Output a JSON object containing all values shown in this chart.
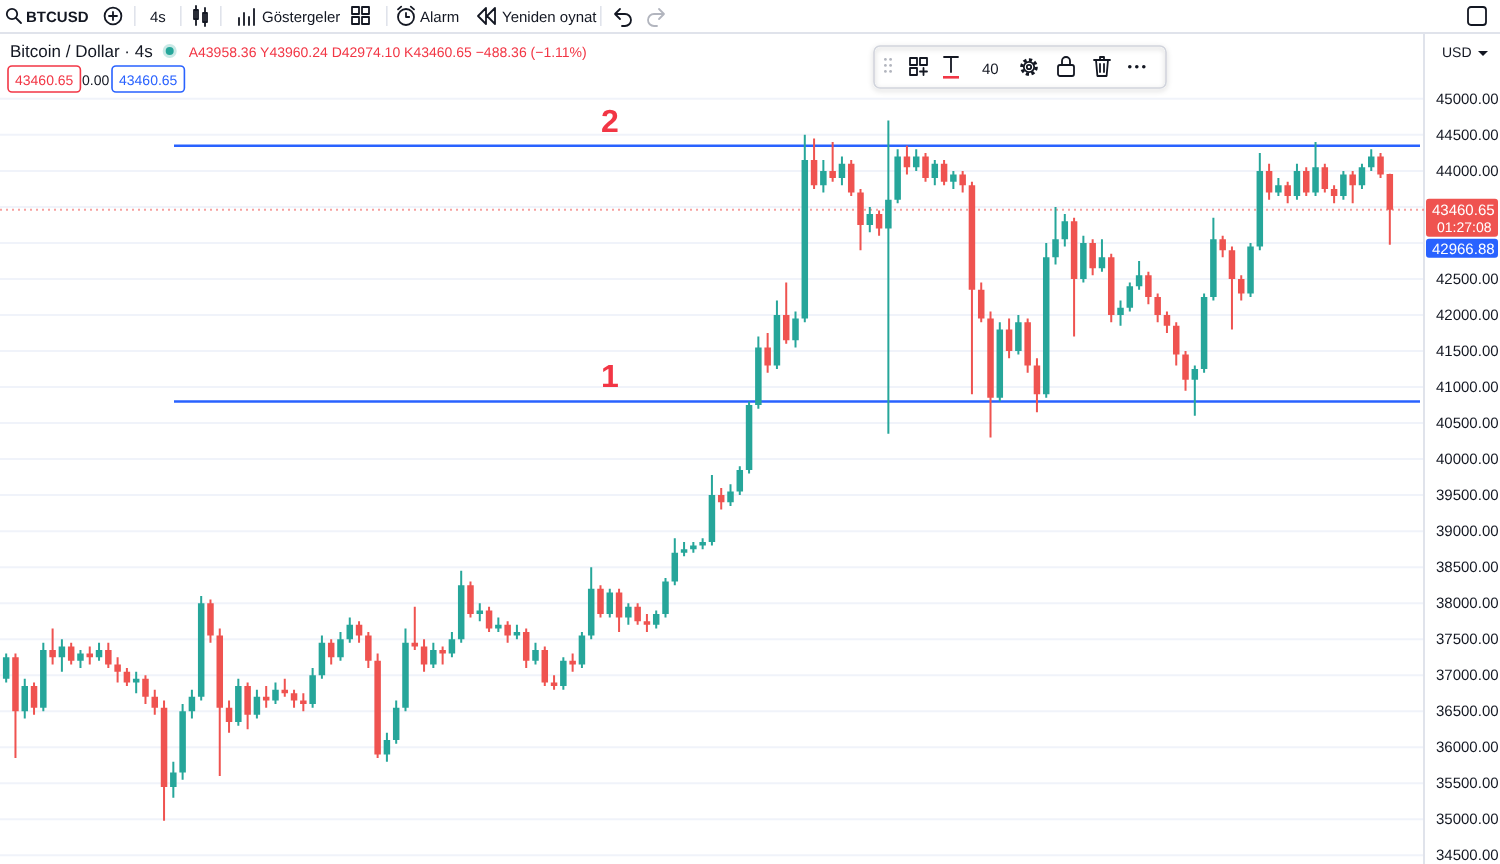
{
  "chart_data": {
    "type": "candlestick",
    "title": "Bitcoin / Dollar · 4s",
    "subtitle": "A43958.36 Y43960.24 D42974.10 K43460.65 −488.36 (−1.11%)",
    "categories": [
      null,
      null,
      null,
      null,
      null,
      null,
      null,
      null,
      null,
      null,
      null,
      null,
      null,
      null,
      null,
      null,
      null,
      null,
      null,
      null,
      null,
      null,
      null,
      null,
      null,
      null,
      null,
      null,
      null,
      null,
      null,
      null,
      null,
      null,
      null,
      null,
      null,
      null,
      null,
      null,
      null,
      null,
      null,
      null,
      null,
      null,
      null,
      null,
      null,
      null,
      null,
      null,
      null,
      null,
      null,
      null,
      null,
      null,
      null,
      null,
      null,
      null,
      null,
      null,
      null,
      null,
      null,
      null,
      null,
      null,
      null,
      null,
      null,
      null,
      null,
      null,
      null,
      null,
      null,
      null,
      null,
      null,
      null,
      null,
      null,
      null,
      null,
      null,
      null,
      null,
      null,
      null,
      null,
      null,
      null,
      null,
      null,
      null,
      null,
      null,
      null,
      null,
      null,
      null,
      null,
      null,
      null,
      null,
      null,
      null,
      null,
      null,
      null,
      null,
      null,
      null,
      null,
      null,
      null,
      null,
      null,
      null,
      null,
      null,
      null,
      null,
      null,
      null,
      null,
      null,
      null,
      null,
      null,
      null,
      null,
      null,
      null,
      null,
      null,
      null,
      null,
      null,
      null,
      null,
      null,
      null,
      null,
      null,
      null,
      null
    ],
    "ohlc": [
      [
        36950,
        37300,
        36900,
        37250
      ],
      [
        37250,
        37300,
        35850,
        36500
      ],
      [
        36500,
        36950,
        36400,
        36850
      ],
      [
        36850,
        36900,
        36450,
        36550
      ],
      [
        36550,
        37450,
        36500,
        37350
      ],
      [
        37350,
        37650,
        37150,
        37250
      ],
      [
        37250,
        37500,
        37050,
        37400
      ],
      [
        37400,
        37450,
        37150,
        37200
      ],
      [
        37200,
        37350,
        37100,
        37300
      ],
      [
        37300,
        37400,
        37150,
        37250
      ],
      [
        37250,
        37450,
        37200,
        37350
      ],
      [
        37350,
        37450,
        37100,
        37150
      ],
      [
        37150,
        37250,
        36900,
        37050
      ],
      [
        37050,
        37100,
        36850,
        36900
      ],
      [
        36900,
        37050,
        36750,
        36950
      ],
      [
        36950,
        37000,
        36600,
        36700
      ],
      [
        36700,
        36800,
        36450,
        36550
      ],
      [
        36550,
        36650,
        34980,
        35450
      ],
      [
        35450,
        35800,
        35300,
        35650
      ],
      [
        35650,
        36600,
        35550,
        36500
      ],
      [
        36500,
        36800,
        36400,
        36700
      ],
      [
        36700,
        38100,
        36650,
        38000
      ],
      [
        38000,
        38050,
        37450,
        37550
      ],
      [
        37550,
        37650,
        35600,
        36550
      ],
      [
        36550,
        36650,
        36200,
        36350
      ],
      [
        36350,
        36950,
        36300,
        36850
      ],
      [
        36850,
        36900,
        36250,
        36450
      ],
      [
        36450,
        36800,
        36400,
        36700
      ],
      [
        36700,
        36850,
        36550,
        36650
      ],
      [
        36650,
        36900,
        36600,
        36800
      ],
      [
        36800,
        36950,
        36700,
        36750
      ],
      [
        36750,
        36800,
        36550,
        36650
      ],
      [
        36650,
        36750,
        36500,
        36600
      ],
      [
        36600,
        37100,
        36550,
        37000
      ],
      [
        37000,
        37550,
        36950,
        37450
      ],
      [
        37450,
        37500,
        37150,
        37250
      ],
      [
        37250,
        37600,
        37200,
        37500
      ],
      [
        37500,
        37800,
        37450,
        37700
      ],
      [
        37700,
        37750,
        37450,
        37550
      ],
      [
        37550,
        37600,
        37100,
        37200
      ],
      [
        37200,
        37300,
        35850,
        35900
      ],
      [
        35900,
        36200,
        35800,
        36100
      ],
      [
        36100,
        36650,
        36050,
        36550
      ],
      [
        36550,
        37650,
        36500,
        37450
      ],
      [
        37450,
        37950,
        37350,
        37400
      ],
      [
        37400,
        37500,
        37050,
        37150
      ],
      [
        37150,
        37450,
        37100,
        37350
      ],
      [
        37350,
        37400,
        37150,
        37300
      ],
      [
        37300,
        37600,
        37250,
        37500
      ],
      [
        37500,
        38450,
        37450,
        38250
      ],
      [
        38250,
        38300,
        37800,
        37850
      ],
      [
        37850,
        38000,
        37750,
        37900
      ],
      [
        37900,
        37950,
        37600,
        37650
      ],
      [
        37650,
        37800,
        37600,
        37700
      ],
      [
        37700,
        37750,
        37450,
        37550
      ],
      [
        37550,
        37700,
        37500,
        37600
      ],
      [
        37600,
        37650,
        37100,
        37200
      ],
      [
        37200,
        37450,
        37150,
        37350
      ],
      [
        37350,
        37400,
        36850,
        36900
      ],
      [
        36900,
        37000,
        36800,
        36850
      ],
      [
        36850,
        37250,
        36800,
        37200
      ],
      [
        37200,
        37300,
        37050,
        37150
      ],
      [
        37150,
        37600,
        37100,
        37550
      ],
      [
        37550,
        38500,
        37500,
        38200
      ],
      [
        38200,
        38250,
        37800,
        37850
      ],
      [
        37850,
        38200,
        37800,
        38150
      ],
      [
        38150,
        38200,
        37600,
        37800
      ],
      [
        37800,
        38000,
        37700,
        37950
      ],
      [
        37950,
        38000,
        37700,
        37750
      ],
      [
        37750,
        37850,
        37600,
        37700
      ],
      [
        37700,
        37900,
        37650,
        37850
      ],
      [
        37850,
        38350,
        37800,
        38300
      ],
      [
        38300,
        38900,
        38250,
        38700
      ],
      [
        38700,
        38850,
        38650,
        38750
      ],
      [
        38750,
        38850,
        38700,
        38800
      ],
      [
        38800,
        38900,
        38750,
        38850
      ],
      [
        38850,
        39780,
        38800,
        39500
      ],
      [
        39500,
        39600,
        39300,
        39400
      ],
      [
        39400,
        39650,
        39350,
        39550
      ],
      [
        39550,
        39900,
        39500,
        39850
      ],
      [
        39850,
        40800,
        39800,
        40750
      ],
      [
        40750,
        41700,
        40700,
        41550
      ],
      [
        41550,
        41750,
        41200,
        41300
      ],
      [
        41300,
        42200,
        41250,
        42000
      ],
      [
        42000,
        42450,
        41600,
        41650
      ],
      [
        41650,
        42050,
        41550,
        41950
      ],
      [
        41950,
        44500,
        41900,
        44150
      ],
      [
        44150,
        44450,
        43750,
        43800
      ],
      [
        43800,
        44150,
        43700,
        44000
      ],
      [
        44000,
        44400,
        43850,
        43900
      ],
      [
        43900,
        44200,
        43800,
        44100
      ],
      [
        44100,
        44150,
        43650,
        43700
      ],
      [
        43700,
        43750,
        42900,
        43250
      ],
      [
        43250,
        43500,
        43150,
        43400
      ],
      [
        43400,
        43450,
        43100,
        43200
      ],
      [
        43200,
        44700,
        40350,
        43600
      ],
      [
        43600,
        44300,
        43550,
        44200
      ],
      [
        44200,
        44350,
        43950,
        44050
      ],
      [
        44050,
        44300,
        44000,
        44200
      ],
      [
        44200,
        44250,
        43850,
        43900
      ],
      [
        43900,
        44150,
        43800,
        44100
      ],
      [
        44100,
        44150,
        43800,
        43850
      ],
      [
        43850,
        44000,
        43750,
        43950
      ],
      [
        43950,
        44000,
        43700,
        43800
      ],
      [
        43800,
        43850,
        40900,
        42350
      ],
      [
        42350,
        42450,
        41900,
        41950
      ],
      [
        41950,
        42050,
        40300,
        40850
      ],
      [
        40850,
        41900,
        40800,
        41800
      ],
      [
        41800,
        41950,
        41400,
        41500
      ],
      [
        41500,
        42000,
        41450,
        41900
      ],
      [
        41900,
        41950,
        41200,
        41300
      ],
      [
        41300,
        41400,
        40650,
        40900
      ],
      [
        40900,
        43000,
        40850,
        42800
      ],
      [
        42800,
        43500,
        42700,
        43050
      ],
      [
        43050,
        43400,
        42950,
        43300
      ],
      [
        43300,
        43350,
        41700,
        42500
      ],
      [
        42500,
        43100,
        42450,
        43000
      ],
      [
        43000,
        43050,
        42550,
        42650
      ],
      [
        42650,
        43050,
        42600,
        42800
      ],
      [
        42800,
        42850,
        41900,
        42000
      ],
      [
        42000,
        42200,
        41850,
        42100
      ],
      [
        42100,
        42450,
        42050,
        42400
      ],
      [
        42400,
        42750,
        42350,
        42550
      ],
      [
        42550,
        42600,
        42150,
        42250
      ],
      [
        42250,
        42300,
        41900,
        42000
      ],
      [
        42000,
        42050,
        41750,
        41850
      ],
      [
        41850,
        41900,
        41300,
        41450
      ],
      [
        41450,
        41500,
        40950,
        41100
      ],
      [
        41100,
        41300,
        40600,
        41250
      ],
      [
        41250,
        42300,
        41200,
        42250
      ],
      [
        42250,
        43350,
        42200,
        43050
      ],
      [
        43050,
        43100,
        42800,
        42900
      ],
      [
        42900,
        42950,
        41800,
        42500
      ],
      [
        42500,
        42550,
        42200,
        42300
      ],
      [
        42300,
        43000,
        42250,
        42950
      ],
      [
        42950,
        44250,
        42900,
        44000
      ],
      [
        44000,
        44100,
        43600,
        43700
      ],
      [
        43700,
        43900,
        43650,
        43800
      ],
      [
        43800,
        43850,
        43550,
        43650
      ],
      [
        43650,
        44100,
        43600,
        44000
      ],
      [
        44000,
        44050,
        43650,
        43700
      ],
      [
        43700,
        44400,
        43650,
        44050
      ],
      [
        44050,
        44100,
        43700,
        43750
      ],
      [
        43750,
        43800,
        43550,
        43650
      ],
      [
        43650,
        44000,
        43600,
        43950
      ],
      [
        43950,
        44000,
        43550,
        43800
      ],
      [
        43800,
        44100,
        43750,
        44050
      ],
      [
        44050,
        44300,
        44000,
        44200
      ],
      [
        44200,
        44250,
        43900,
        43950
      ],
      [
        43958.36,
        43960.24,
        42974.1,
        43460.65
      ]
    ],
    "ylim": [
      34380,
      45900
    ],
    "yticks": [
      {
        "value": 34500,
        "label": "34500.00"
      },
      {
        "value": 35000,
        "label": "35000.00"
      },
      {
        "value": 35500,
        "label": "35500.00"
      },
      {
        "value": 36000,
        "label": "36000.00"
      },
      {
        "value": 36500,
        "label": "36500.00"
      },
      {
        "value": 37000,
        "label": "37000.00"
      },
      {
        "value": 37500,
        "label": "37500.00"
      },
      {
        "value": 38000,
        "label": "38000.00"
      },
      {
        "value": 38500,
        "label": "38500.00"
      },
      {
        "value": 39000,
        "label": "39000.00"
      },
      {
        "value": 39500,
        "label": "39500.00"
      },
      {
        "value": 40000,
        "label": "40000.00"
      },
      {
        "value": 40500,
        "label": "40500.00"
      },
      {
        "value": 41000,
        "label": "41000.00"
      },
      {
        "value": 41500,
        "label": "41500.00"
      },
      {
        "value": 42000,
        "label": "42000.00"
      },
      {
        "value": 42500,
        "label": "42500.00"
      },
      {
        "value": 43000,
        "label": null
      },
      {
        "value": 43500,
        "label": null
      },
      {
        "value": 44000,
        "label": "44000.00"
      },
      {
        "value": 44500,
        "label": "44500.00"
      },
      {
        "value": 45000,
        "label": "45000.00"
      }
    ],
    "grid": "y",
    "tick_labels": "y",
    "ref_lines": [
      {
        "axis": "y",
        "value": 44350,
        "color": "#2962ff"
      },
      {
        "axis": "y",
        "value": 40800,
        "color": "#2962ff"
      },
      {
        "axis": "y",
        "value": 43460.65,
        "label": "43460.65",
        "color": "#ef5350",
        "line_style": "dotted"
      }
    ],
    "annotations": [
      "BTCUSD",
      "4s",
      "Göstergeler",
      "Alarm",
      "Yeniden oynat",
      "USD",
      "43460.65",
      "0.00",
      "43460.65",
      "40",
      "01:27:08",
      "42966.88",
      {
        "text": "2",
        "y": 44350
      },
      {
        "text": "1",
        "y": 40800
      }
    ]
  }
}
